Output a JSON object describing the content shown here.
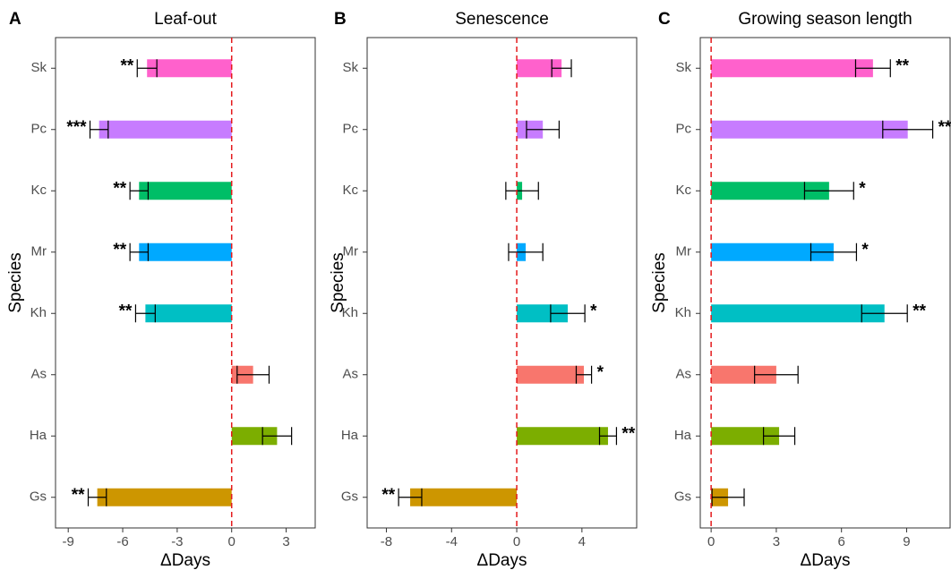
{
  "chart_data": [
    {
      "type": "bar",
      "orientation": "horizontal",
      "panel_label": "A",
      "title": "Leaf-out",
      "xlabel": "ΔDays",
      "ylabel": "Species",
      "categories": [
        "Sk",
        "Pc",
        "Kc",
        "Mr",
        "Kh",
        "As",
        "Ha",
        "Gs"
      ],
      "values": [
        -4.66,
        -7.3,
        -5.1,
        -5.1,
        -4.75,
        1.18,
        2.5,
        -7.4
      ],
      "errors": [
        0.54,
        0.5,
        0.5,
        0.5,
        0.54,
        0.88,
        0.8,
        0.5
      ],
      "annotations": [
        "**",
        "***",
        "**",
        "**",
        "**",
        null,
        null,
        "**"
      ],
      "colors": [
        "#FF61CC",
        "#C77CFF",
        "#00BE67",
        "#00A9FF",
        "#00BFC4",
        "#F8766D",
        "#7CAE00",
        "#CD9600"
      ],
      "xlim": [
        -9.7,
        4.6
      ],
      "xticks": [
        -9,
        -6,
        -3,
        0,
        3
      ],
      "reference_line": 0,
      "reference_color": "#e41a1c"
    },
    {
      "type": "bar",
      "orientation": "horizontal",
      "panel_label": "B",
      "title": "Senescence",
      "xlabel": "ΔDays",
      "ylabel": "Species",
      "categories": [
        "Sk",
        "Pc",
        "Kc",
        "Mr",
        "Kh",
        "As",
        "Ha",
        "Gs"
      ],
      "values": [
        2.75,
        1.6,
        0.33,
        0.55,
        3.13,
        4.12,
        5.6,
        -6.54
      ],
      "errors": [
        0.6,
        1.0,
        1.0,
        1.05,
        1.05,
        0.47,
        0.52,
        0.71
      ],
      "annotations": [
        null,
        null,
        null,
        null,
        "*",
        "*",
        "**",
        "**"
      ],
      "colors": [
        "#FF61CC",
        "#C77CFF",
        "#00BE67",
        "#00A9FF",
        "#00BFC4",
        "#F8766D",
        "#7CAE00",
        "#CD9600"
      ],
      "xlim": [
        -9.18,
        7.36
      ],
      "xticks": [
        -8,
        -4,
        0,
        4
      ],
      "reference_line": 0,
      "reference_color": "#e41a1c"
    },
    {
      "type": "bar",
      "orientation": "horizontal",
      "panel_label": "C",
      "title": "Growing season length",
      "xlabel": "ΔDays",
      "ylabel": "Species",
      "categories": [
        "Sk",
        "Pc",
        "Kc",
        "Mr",
        "Kh",
        "As",
        "Ha",
        "Gs"
      ],
      "values": [
        7.45,
        9.05,
        5.43,
        5.64,
        7.98,
        3.0,
        3.13,
        0.78
      ],
      "errors": [
        0.8,
        1.15,
        1.13,
        1.05,
        1.05,
        1.0,
        0.72,
        0.74
      ],
      "annotations": [
        "**",
        "**",
        "*",
        "*",
        "**",
        null,
        null,
        null
      ],
      "colors": [
        "#FF61CC",
        "#C77CFF",
        "#00BE67",
        "#00A9FF",
        "#00BFC4",
        "#F8766D",
        "#7CAE00",
        "#CD9600"
      ],
      "xlim": [
        -0.5,
        11
      ],
      "xticks": [
        0,
        3,
        6,
        9
      ],
      "reference_line": 0,
      "reference_color": "#e41a1c"
    }
  ]
}
